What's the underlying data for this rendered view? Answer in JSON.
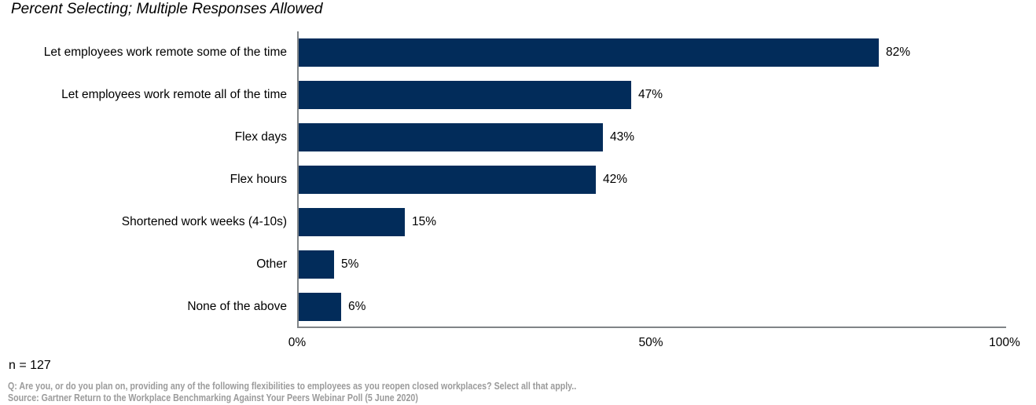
{
  "title": "Percent Selecting; Multiple Responses Allowed",
  "chart_data": {
    "type": "bar",
    "orientation": "horizontal",
    "title": "Percent Selecting; Multiple Responses Allowed",
    "categories": [
      "Let employees work remote some of the time",
      "Let employees work remote all of the time",
      "Flex days",
      "Flex hours",
      "Shortened work weeks (4-10s)",
      "Other",
      "None of the above"
    ],
    "values": [
      82,
      47,
      43,
      42,
      15,
      5,
      6
    ],
    "value_labels": [
      "82%",
      "47%",
      "43%",
      "42%",
      "15%",
      "5%",
      "6%"
    ],
    "xlim": [
      0,
      100
    ],
    "x_ticks": [
      "0%",
      "50%",
      "100%"
    ],
    "xlabel": "",
    "ylabel": "",
    "grid": false,
    "legend": "none",
    "bar_color": "#022C5A",
    "axis_color": "#808487"
  },
  "footer": {
    "sample_size": "n = 127",
    "question": "Q: Are you, or do you plan on, providing any of the following flexibilities to employees as you reopen closed workplaces? Select all that apply..",
    "source": "Source: Gartner Return to the Workplace Benchmarking Against Your Peers Webinar Poll (5 June 2020)"
  },
  "colors": {
    "background": "#FFFFFF",
    "bar": "#022C5A",
    "axis": "#808487",
    "text": "#000000",
    "footnote_text": "#9B9B9B"
  }
}
